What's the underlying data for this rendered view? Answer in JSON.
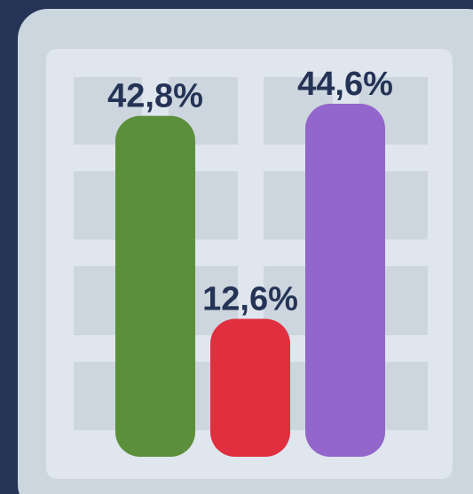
{
  "chart_data": {
    "type": "bar",
    "categories": [
      null,
      null,
      null
    ],
    "values": [
      42.8,
      12.6,
      44.6
    ],
    "value_labels": [
      "42,8%",
      "12,6%",
      "44,6%"
    ],
    "colors": [
      "#5b8f3b",
      "#e02f3f",
      "#9266ca"
    ]
  }
}
